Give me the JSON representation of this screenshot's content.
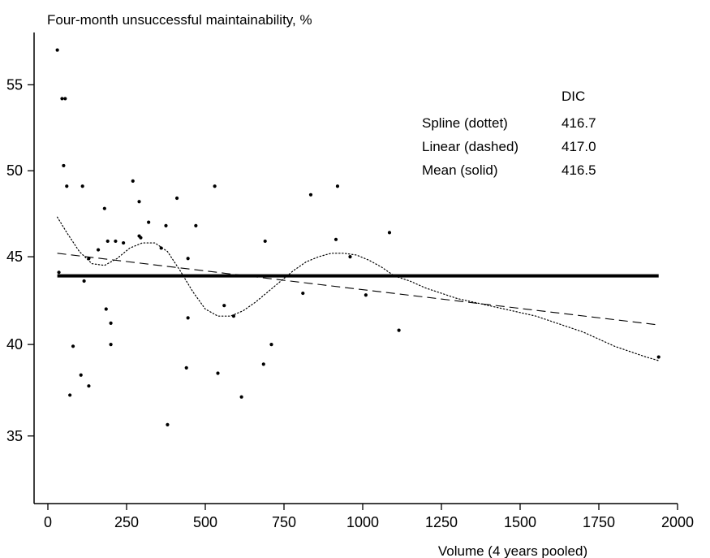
{
  "chart_data": {
    "type": "scatter",
    "title": "",
    "xlabel": "Volume (4 years pooled)",
    "ylabel": "Four-month unsuccessful maintainability, %",
    "xlim": [
      0,
      2000
    ],
    "ylim": [
      31.5,
      58.0
    ],
    "x_ticks": [
      0,
      250,
      500,
      750,
      1000,
      1250,
      1500,
      1750,
      2000
    ],
    "y_ticks": [
      35,
      40,
      45,
      50,
      55
    ],
    "scale": "logit",
    "grid": false,
    "legend": {
      "placement": "top-right",
      "header": "DIC",
      "entries": [
        {
          "label": "Spline (dottet)",
          "value": "416.7"
        },
        {
          "label": "Linear (dashed)",
          "value": "417.0"
        },
        {
          "label": "Mean (solid)",
          "value": "416.5"
        }
      ]
    },
    "points": [
      [
        30,
        57.0
      ],
      [
        45,
        54.2
      ],
      [
        55,
        54.2
      ],
      [
        50,
        50.3
      ],
      [
        60,
        49.1
      ],
      [
        110,
        49.1
      ],
      [
        35,
        44.1
      ],
      [
        115,
        43.6
      ],
      [
        130,
        44.9
      ],
      [
        160,
        45.4
      ],
      [
        180,
        47.8
      ],
      [
        190,
        45.9
      ],
      [
        215,
        45.9
      ],
      [
        240,
        45.8
      ],
      [
        270,
        49.4
      ],
      [
        290,
        48.2
      ],
      [
        290,
        46.2
      ],
      [
        295,
        46.1
      ],
      [
        320,
        47.0
      ],
      [
        360,
        45.5
      ],
      [
        375,
        46.8
      ],
      [
        410,
        48.4
      ],
      [
        445,
        44.9
      ],
      [
        470,
        46.8
      ],
      [
        530,
        49.1
      ],
      [
        690,
        45.9
      ],
      [
        835,
        48.6
      ],
      [
        920,
        49.1
      ],
      [
        915,
        46.0
      ],
      [
        960,
        45.0
      ],
      [
        1085,
        46.4
      ],
      [
        80,
        39.9
      ],
      [
        105,
        38.3
      ],
      [
        130,
        37.7
      ],
      [
        70,
        37.2
      ],
      [
        185,
        42.0
      ],
      [
        200,
        41.2
      ],
      [
        200,
        40.0
      ],
      [
        445,
        41.5
      ],
      [
        440,
        38.7
      ],
      [
        380,
        35.6
      ],
      [
        540,
        38.4
      ],
      [
        560,
        42.2
      ],
      [
        590,
        41.6
      ],
      [
        615,
        37.1
      ],
      [
        685,
        38.9
      ],
      [
        710,
        40.0
      ],
      [
        810,
        42.9
      ],
      [
        1010,
        42.8
      ],
      [
        1115,
        40.8
      ],
      [
        1940,
        39.3
      ]
    ],
    "series": [
      {
        "style": "dotted",
        "x": [
          30,
          60,
          100,
          140,
          180,
          220,
          260,
          300,
          340,
          380,
          420,
          460,
          500,
          540,
          580,
          620,
          660,
          700,
          740,
          780,
          820,
          860,
          900,
          940,
          980,
          1020,
          1060,
          1100,
          1150,
          1200,
          1250,
          1300,
          1350,
          1400,
          1450,
          1500,
          1550,
          1600,
          1650,
          1700,
          1750,
          1800,
          1850,
          1900,
          1940
        ],
        "values": [
          47.3,
          46.4,
          45.3,
          44.6,
          44.5,
          44.9,
          45.5,
          45.8,
          45.8,
          45.3,
          44.2,
          43.0,
          42.0,
          41.6,
          41.6,
          41.9,
          42.4,
          43.0,
          43.6,
          44.2,
          44.7,
          45.0,
          45.2,
          45.2,
          45.1,
          44.8,
          44.4,
          43.9,
          43.6,
          43.2,
          42.9,
          42.6,
          42.4,
          42.2,
          42.0,
          41.8,
          41.6,
          41.3,
          41.0,
          40.7,
          40.3,
          39.9,
          39.6,
          39.3,
          39.1
        ]
      },
      {
        "style": "dashed",
        "x": [
          30,
          1940
        ],
        "values": [
          45.2,
          41.1
        ]
      },
      {
        "style": "solid",
        "x": [
          30,
          1940
        ],
        "values": [
          43.9,
          43.9
        ]
      }
    ]
  }
}
